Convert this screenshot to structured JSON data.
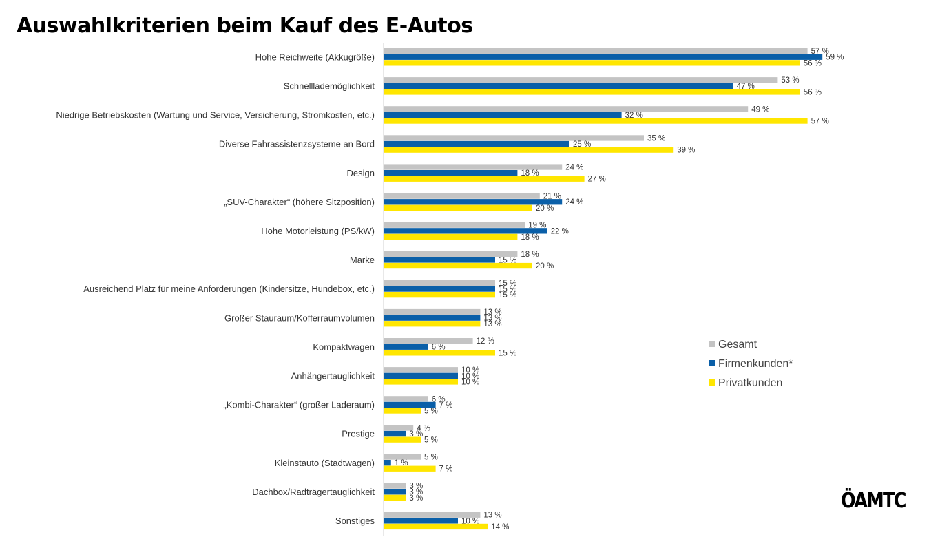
{
  "chart_data": {
    "type": "bar",
    "orientation": "horizontal",
    "title": "Auswahlkriterien beim Kauf des E-Autos",
    "categories": [
      "Hohe Reichweite (Akkugröße)",
      "Schnelllademöglichkeit",
      "Niedrige Betriebskosten (Wartung und Service, Versicherung, Stromkosten, etc.)",
      "Diverse Fahrassistenzsysteme an Bord",
      "Design",
      "„SUV-Charakter“ (höhere Sitzposition)",
      "Hohe Motorleistung (PS/kW)",
      "Marke",
      "Ausreichend Platz für meine Anforderungen (Kindersitze, Hundebox, etc.)",
      "Großer Stauraum/Kofferraumvolumen",
      "Kompaktwagen",
      "Anhängertauglichkeit",
      "„Kombi-Charakter“ (großer Laderaum)",
      "Prestige",
      "Kleinstauto (Stadtwagen)",
      "Dachbox/Radträgertauglichkeit",
      "Sonstiges"
    ],
    "series": [
      {
        "name": "Gesamt",
        "color": "#c4c4c4",
        "values": [
          57,
          53,
          49,
          35,
          24,
          21,
          19,
          18,
          15,
          13,
          12,
          10,
          6,
          4,
          5,
          3,
          13
        ]
      },
      {
        "name": "Firmenkunden*",
        "color": "#0a5fa8",
        "values": [
          59,
          47,
          32,
          25,
          18,
          24,
          22,
          15,
          15,
          13,
          6,
          10,
          7,
          3,
          1,
          3,
          10
        ]
      },
      {
        "name": "Privatkunden",
        "color": "#ffe600",
        "values": [
          56,
          56,
          57,
          39,
          27,
          20,
          18,
          20,
          15,
          13,
          15,
          10,
          5,
          5,
          7,
          3,
          14
        ]
      }
    ],
    "value_suffix": " %",
    "xlim": [
      0,
      60
    ],
    "grid": false,
    "legend_position": "right"
  },
  "logo_text": "ÖAMTC"
}
